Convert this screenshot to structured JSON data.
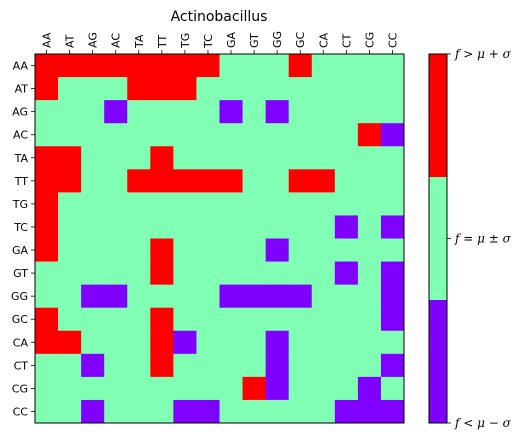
{
  "chart_data": {
    "type": "heatmap",
    "title": "Actinobacillus",
    "xlabel": "",
    "ylabel": "",
    "x_categories": [
      "AA",
      "AT",
      "AG",
      "AC",
      "TA",
      "TT",
      "TG",
      "TC",
      "GA",
      "GT",
      "GG",
      "GC",
      "CA",
      "CT",
      "CG",
      "CC"
    ],
    "y_categories": [
      "AA",
      "AT",
      "AG",
      "AC",
      "TA",
      "TT",
      "TG",
      "TC",
      "GA",
      "GT",
      "GG",
      "GC",
      "CA",
      "CT",
      "CG",
      "CC"
    ],
    "value_encoding": {
      "-1": "f < mu - sigma",
      "0": "f = mu +/- sigma",
      "1": "f > mu + sigma"
    },
    "values": [
      [
        1,
        1,
        1,
        1,
        1,
        1,
        1,
        1,
        0,
        0,
        0,
        1,
        0,
        0,
        0,
        0
      ],
      [
        1,
        0,
        0,
        0,
        1,
        1,
        1,
        0,
        0,
        0,
        0,
        0,
        0,
        0,
        0,
        0
      ],
      [
        0,
        0,
        0,
        -1,
        0,
        0,
        0,
        0,
        -1,
        0,
        -1,
        0,
        0,
        0,
        0,
        0
      ],
      [
        0,
        0,
        0,
        0,
        0,
        0,
        0,
        0,
        0,
        0,
        0,
        0,
        0,
        0,
        1,
        -1
      ],
      [
        1,
        1,
        0,
        0,
        0,
        1,
        0,
        0,
        0,
        0,
        0,
        0,
        0,
        0,
        0,
        0
      ],
      [
        1,
        1,
        0,
        0,
        1,
        1,
        1,
        1,
        1,
        0,
        0,
        1,
        1,
        0,
        0,
        0
      ],
      [
        1,
        0,
        0,
        0,
        0,
        0,
        0,
        0,
        0,
        0,
        0,
        0,
        0,
        0,
        0,
        0
      ],
      [
        1,
        0,
        0,
        0,
        0,
        0,
        0,
        0,
        0,
        0,
        0,
        0,
        0,
        -1,
        0,
        -1
      ],
      [
        1,
        0,
        0,
        0,
        0,
        1,
        0,
        0,
        0,
        0,
        -1,
        0,
        0,
        0,
        0,
        0
      ],
      [
        0,
        0,
        0,
        0,
        0,
        1,
        0,
        0,
        0,
        0,
        0,
        0,
        0,
        -1,
        0,
        -1
      ],
      [
        0,
        0,
        -1,
        -1,
        0,
        0,
        0,
        0,
        -1,
        -1,
        -1,
        -1,
        0,
        0,
        0,
        -1
      ],
      [
        1,
        0,
        0,
        0,
        0,
        1,
        0,
        0,
        0,
        0,
        0,
        0,
        0,
        0,
        0,
        -1
      ],
      [
        1,
        1,
        0,
        0,
        0,
        1,
        -1,
        0,
        0,
        0,
        -1,
        0,
        0,
        0,
        0,
        0
      ],
      [
        0,
        0,
        -1,
        0,
        0,
        1,
        0,
        0,
        0,
        0,
        -1,
        0,
        0,
        0,
        0,
        -1
      ],
      [
        0,
        0,
        0,
        0,
        0,
        0,
        0,
        0,
        0,
        1,
        -1,
        0,
        0,
        0,
        -1,
        0
      ],
      [
        0,
        0,
        -1,
        0,
        0,
        0,
        -1,
        -1,
        0,
        0,
        0,
        0,
        0,
        -1,
        -1,
        -1
      ]
    ],
    "colorbar": {
      "labels": [
        "f > μ + σ",
        "f = μ ± σ",
        "f < μ − σ"
      ]
    },
    "colors": {
      "high": "#ff0000",
      "mid": "#80ffb4",
      "low": "#8000ff"
    },
    "grid": false
  }
}
